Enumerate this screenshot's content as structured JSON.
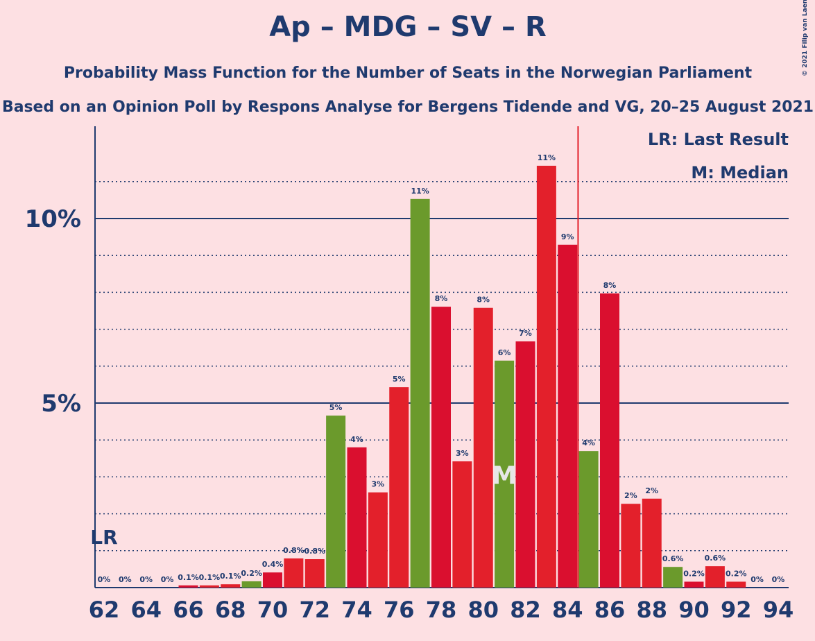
{
  "chart_data": {
    "type": "bar",
    "title": "Ap – MDG – SV – R",
    "subtitles": [
      "Probability Mass Function for the Number of Seats in the Norwegian Parliament",
      "Based on an Opinion Poll by Respons Analyse for Bergens Tidende and VG, 20–25 August 2021"
    ],
    "categories": [
      62,
      null,
      64,
      null,
      66,
      null,
      68,
      null,
      70,
      null,
      72,
      null,
      74,
      null,
      76,
      null,
      78,
      null,
      80,
      null,
      82,
      null,
      84,
      null,
      86,
      null,
      88,
      null,
      90,
      null,
      92,
      null,
      94
    ],
    "values": [
      0,
      0,
      0,
      0,
      0.06,
      0.06,
      0.09,
      0.17,
      0.41,
      0.79,
      0.77,
      4.66,
      3.8,
      2.58,
      5.43,
      10.53,
      7.61,
      3.42,
      7.58,
      6.15,
      6.67,
      11.43,
      9.29,
      3.7,
      7.97,
      2.27,
      2.41,
      0.56,
      0.16,
      0.58,
      0.16,
      0,
      0
    ],
    "value_labels": [
      "0%",
      "0%",
      "0%",
      "0%",
      "0.1%",
      "0.1%",
      "0.1%",
      "0.2%",
      "0.4%",
      "0.8%",
      "0.8%",
      "5%",
      "4%",
      "3%",
      "5%",
      "11%",
      "8%",
      "3%",
      "8%",
      "6%",
      "7%",
      "11%",
      "9%",
      "4%",
      "8%",
      "2%",
      "2%",
      "0.6%",
      "0.2%",
      "0.6%",
      "0.2%",
      "0%",
      "0%"
    ],
    "colors": [
      "#da0f2f",
      "#e3202b",
      "#e3202b",
      "#6b9a2c",
      "#da0f2f",
      "#e3202b",
      "#e3202b",
      "#6b9a2c",
      "#da0f2f",
      "#e3202b",
      "#e3202b",
      "#6b9a2c",
      "#da0f2f",
      "#e3202b",
      "#e3202b",
      "#6b9a2c",
      "#da0f2f",
      "#e3202b",
      "#e3202b",
      "#6b9a2c",
      "#da0f2f",
      "#e3202b",
      "#da0f2f",
      "#6b9a2c",
      "#da0f2f",
      "#e3202b",
      "#e3202b",
      "#6b9a2c",
      "#da0f2f",
      "#e3202b",
      "#e3202b",
      "#6b9a2c",
      "#da0f2f"
    ],
    "ylim": [
      0,
      12.5
    ],
    "yticks": [
      {
        "value": 5,
        "label": "5%"
      },
      {
        "value": 10,
        "label": "10%"
      }
    ],
    "minor_yticks": [
      1,
      2,
      3,
      4,
      6,
      7,
      8,
      9,
      11
    ],
    "last_result": 62,
    "last_result_marker": "LR",
    "median": 81,
    "median_marker": "M",
    "majority": 85,
    "legend": [
      "LR: Last Result",
      "M: Median"
    ],
    "copyright": "© 2021 Filip van Laenen"
  }
}
